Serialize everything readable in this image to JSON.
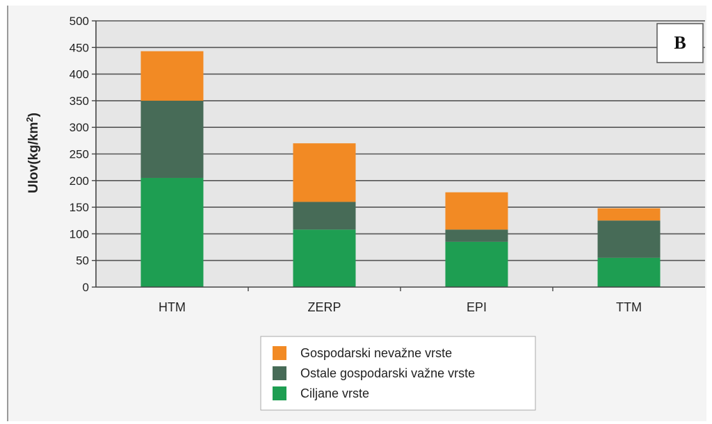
{
  "chart_data": {
    "type": "bar",
    "stacked": true,
    "categories": [
      "HTM",
      "ZERP",
      "EPI",
      "TTM"
    ],
    "series": [
      {
        "name": "Ciljane vrste",
        "color": "#1e9e52",
        "values": [
          205,
          108,
          85,
          55
        ]
      },
      {
        "name": "Ostale gospodarski važne vrste",
        "color": "#476b57",
        "values": [
          145,
          52,
          23,
          70
        ]
      },
      {
        "name": "Gospodarski nevažne vrste",
        "color": "#f28a24",
        "values": [
          93,
          110,
          70,
          23
        ]
      }
    ],
    "legend_order": [
      2,
      1,
      0
    ],
    "ylabel": "Ulov(kg/km",
    "ylabel_superscript": "2",
    "ylabel_close": ")",
    "ylim": [
      0,
      500
    ],
    "yticks": [
      0,
      50,
      100,
      150,
      200,
      250,
      300,
      350,
      400,
      450,
      500
    ],
    "grid": true,
    "legend_position": "bottom",
    "panel_label": "B",
    "plot_background": "#e6e6e6"
  }
}
